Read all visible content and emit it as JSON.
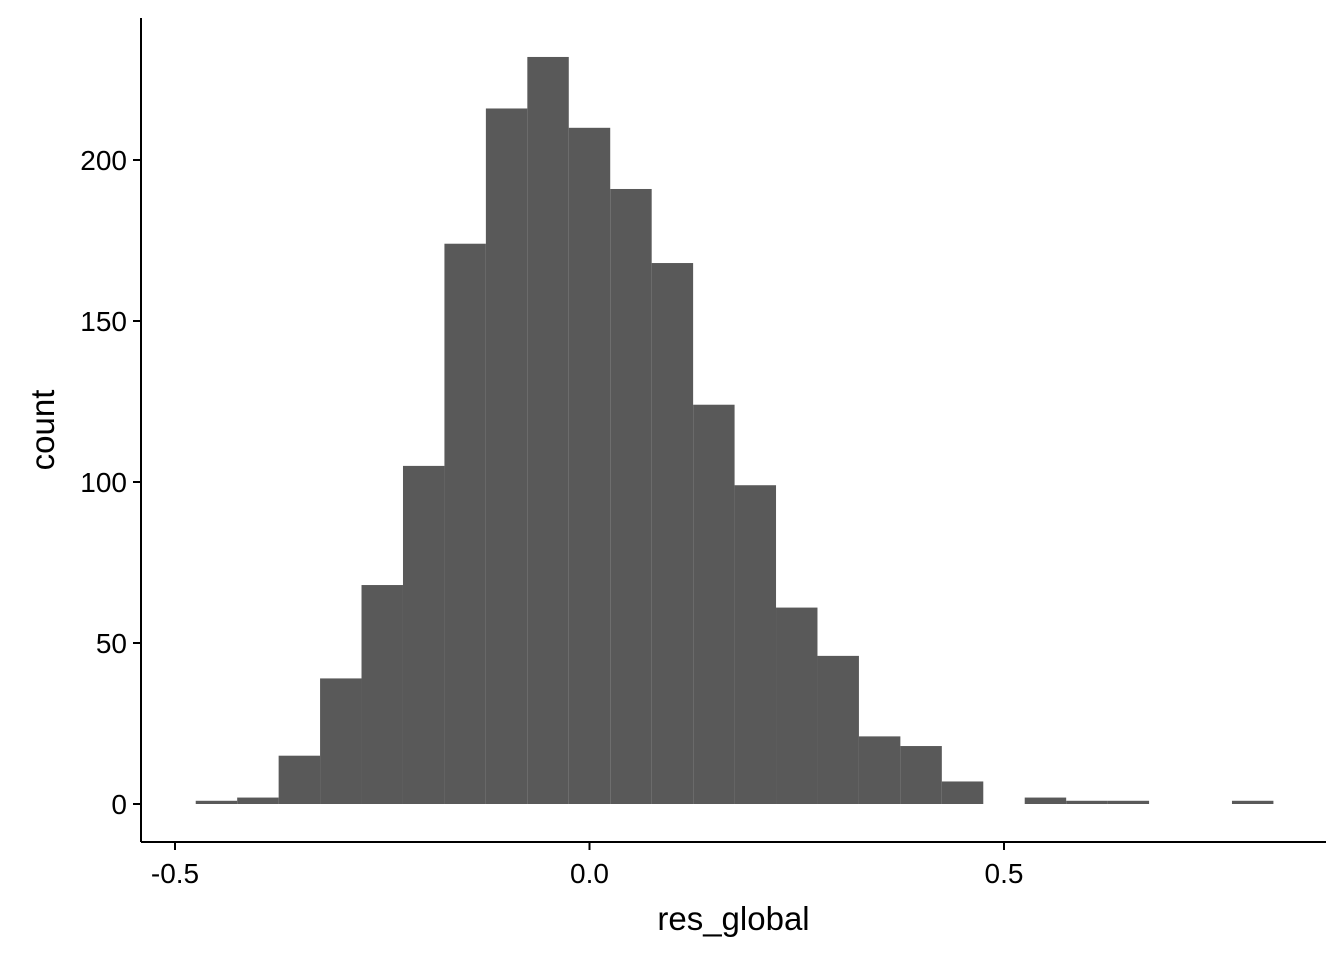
{
  "chart_data": {
    "type": "bar",
    "subtype": "histogram",
    "title": "",
    "xlabel": "res_global",
    "ylabel": "count",
    "xlim": [
      -0.54,
      0.89
    ],
    "ylim": [
      -12,
      242
    ],
    "x_ticks": [
      -0.5,
      0.0,
      0.5
    ],
    "x_tick_labels": [
      "-0.5",
      "0.0",
      "0.5"
    ],
    "y_ticks": [
      0,
      50,
      100,
      150,
      200
    ],
    "y_tick_labels": [
      "0",
      "50",
      "100",
      "150",
      "200"
    ],
    "bin_width": 0.05,
    "bins": [
      {
        "x0": -0.475,
        "x1": -0.425,
        "count": 1
      },
      {
        "x0": -0.425,
        "x1": -0.375,
        "count": 2
      },
      {
        "x0": -0.375,
        "x1": -0.325,
        "count": 15
      },
      {
        "x0": -0.325,
        "x1": -0.275,
        "count": 39
      },
      {
        "x0": -0.275,
        "x1": -0.225,
        "count": 68
      },
      {
        "x0": -0.225,
        "x1": -0.175,
        "count": 105
      },
      {
        "x0": -0.175,
        "x1": -0.125,
        "count": 174
      },
      {
        "x0": -0.125,
        "x1": -0.075,
        "count": 216
      },
      {
        "x0": -0.075,
        "x1": -0.025,
        "count": 232
      },
      {
        "x0": -0.025,
        "x1": 0.025,
        "count": 210
      },
      {
        "x0": 0.025,
        "x1": 0.075,
        "count": 191
      },
      {
        "x0": 0.075,
        "x1": 0.125,
        "count": 168
      },
      {
        "x0": 0.125,
        "x1": 0.175,
        "count": 124
      },
      {
        "x0": 0.175,
        "x1": 0.225,
        "count": 99
      },
      {
        "x0": 0.225,
        "x1": 0.275,
        "count": 61
      },
      {
        "x0": 0.275,
        "x1": 0.325,
        "count": 46
      },
      {
        "x0": 0.325,
        "x1": 0.375,
        "count": 21
      },
      {
        "x0": 0.375,
        "x1": 0.425,
        "count": 18
      },
      {
        "x0": 0.425,
        "x1": 0.475,
        "count": 7
      },
      {
        "x0": 0.475,
        "x1": 0.525,
        "count": 0
      },
      {
        "x0": 0.525,
        "x1": 0.575,
        "count": 2
      },
      {
        "x0": 0.575,
        "x1": 0.625,
        "count": 1
      },
      {
        "x0": 0.625,
        "x1": 0.675,
        "count": 1
      },
      {
        "x0": 0.675,
        "x1": 0.725,
        "count": 0
      },
      {
        "x0": 0.725,
        "x1": 0.775,
        "count": 0
      },
      {
        "x0": 0.775,
        "x1": 0.825,
        "count": 1
      }
    ],
    "bar_color": "#595959",
    "grid": false,
    "legend": "none"
  }
}
